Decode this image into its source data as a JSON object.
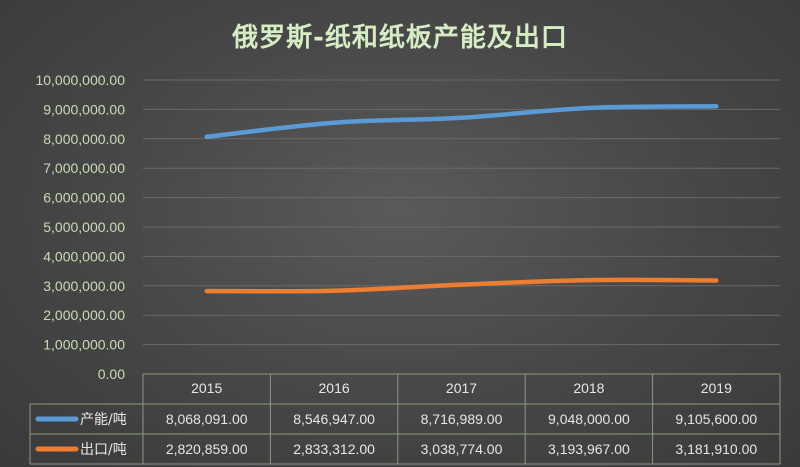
{
  "chart_data": {
    "type": "line",
    "title": "俄罗斯-纸和纸板产能及出口",
    "categories": [
      "2015",
      "2016",
      "2017",
      "2018",
      "2019"
    ],
    "series": [
      {
        "name": "产能/吨",
        "color": "#5b9bd5",
        "values": [
          8068091,
          8546947,
          8716989,
          9048000,
          9105600
        ],
        "labels": [
          "8,068,091.00",
          "8,546,947.00",
          "8,716,989.00",
          "9,048,000.00",
          "9,105,600.00"
        ]
      },
      {
        "name": "出口/吨",
        "color": "#ed7d31",
        "values": [
          2820859,
          2833312,
          3038774,
          3193967,
          3181910
        ],
        "labels": [
          "2,820,859.00",
          "2,833,312.00",
          "3,038,774.00",
          "3,193,967.00",
          "3,181,910.00"
        ]
      }
    ],
    "ylim": [
      0,
      10000000
    ],
    "y_ticks": [
      "0.00",
      "1,000,000.00",
      "2,000,000.00",
      "3,000,000.00",
      "4,000,000.00",
      "5,000,000.00",
      "6,000,000.00",
      "7,000,000.00",
      "8,000,000.00",
      "9,000,000.00",
      "10,000,000.00"
    ],
    "grid": true,
    "legend": "data-table"
  }
}
